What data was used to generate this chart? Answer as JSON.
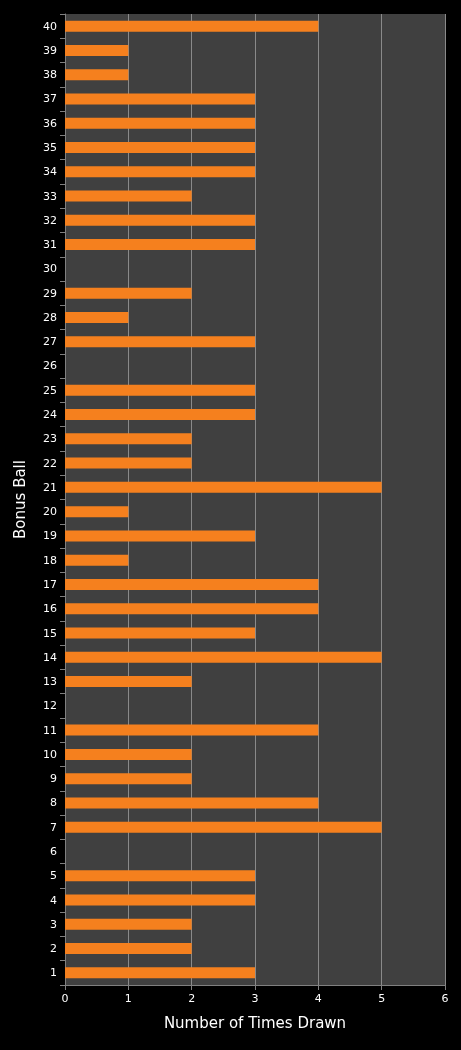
{
  "chart_data": {
    "type": "bar",
    "orientation": "horizontal",
    "xlabel": "Number of Times Drawn",
    "ylabel": "Bonus Ball",
    "categories": [
      "40",
      "39",
      "38",
      "37",
      "36",
      "35",
      "34",
      "33",
      "32",
      "31",
      "30",
      "29",
      "28",
      "27",
      "26",
      "25",
      "24",
      "23",
      "22",
      "21",
      "20",
      "19",
      "18",
      "17",
      "16",
      "15",
      "14",
      "13",
      "12",
      "11",
      "10",
      "9",
      "8",
      "7",
      "6",
      "5",
      "4",
      "3",
      "2",
      "1"
    ],
    "values": [
      4,
      1,
      1,
      3,
      3,
      3,
      3,
      2,
      3,
      3,
      0,
      2,
      1,
      3,
      0,
      3,
      3,
      2,
      2,
      5,
      1,
      3,
      1,
      4,
      4,
      3,
      5,
      2,
      0,
      4,
      2,
      2,
      4,
      5,
      0,
      3,
      3,
      2,
      2,
      3
    ],
    "color": "#f5801e",
    "xlim": [
      0,
      6
    ],
    "xticks": [
      0,
      1,
      2,
      3,
      4,
      5,
      6
    ],
    "grid": "x"
  }
}
